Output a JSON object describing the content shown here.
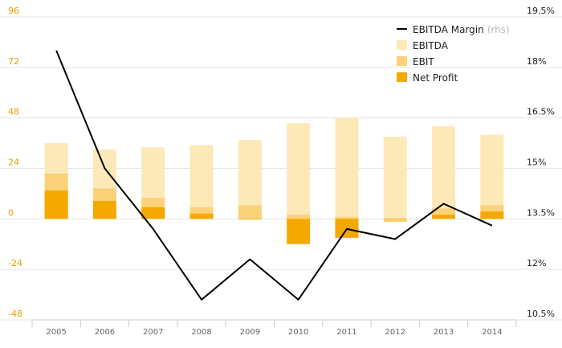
{
  "chart_data": {
    "type": "bar",
    "categories": [
      "2005",
      "2006",
      "2007",
      "2008",
      "2009",
      "2010",
      "2011",
      "2012",
      "2013",
      "2014"
    ],
    "left_axis": {
      "ylim": [
        -48,
        96
      ],
      "ticks": [
        "96",
        "72",
        "48",
        "24",
        "0",
        "-24",
        "-48"
      ],
      "tick_values": [
        96,
        72,
        48,
        24,
        0,
        -24,
        -48
      ]
    },
    "right_axis": {
      "ylim": [
        10.5,
        19.5
      ],
      "ticks": [
        "19.5%",
        "18%",
        "16.5%",
        "15%",
        "13.5%",
        "12%",
        "10.5%"
      ],
      "tick_values": [
        19.5,
        18,
        16.5,
        15,
        13.5,
        12,
        10.5
      ]
    },
    "series": [
      {
        "name": "EBITDA",
        "kind": "bar",
        "color": "#fde8b8",
        "values": [
          36,
          33,
          34,
          35,
          37.5,
          45.5,
          48,
          39,
          44,
          40
        ]
      },
      {
        "name": "EBIT",
        "kind": "bar",
        "color": "#fbd27a",
        "values": [
          21.5,
          14.5,
          10,
          5.5,
          6.5,
          2,
          1,
          -1.5,
          5,
          6.5
        ]
      },
      {
        "name": "Net Profit",
        "kind": "bar",
        "color": "#f5a800",
        "values": [
          13.5,
          8.5,
          5.5,
          2.5,
          0,
          -12,
          -9,
          0,
          2,
          3.5
        ]
      },
      {
        "name": "EBITDA Margin",
        "name_suffix": "(rhs)",
        "kind": "line",
        "axis": "right",
        "color": "#000000",
        "values": [
          18.5,
          15,
          13.2,
          11.1,
          12.3,
          11.1,
          13.2,
          12.9,
          13.95,
          13.3
        ]
      }
    ],
    "legend": {
      "position": "top-right",
      "items": [
        {
          "label": "EBITDA Margin",
          "suffix": "(rhs)",
          "marker": "line",
          "color": "#000000"
        },
        {
          "label": "EBITDA",
          "marker": "box",
          "color": "#fde8b8"
        },
        {
          "label": "EBIT",
          "marker": "box",
          "color": "#fbd27a"
        },
        {
          "label": "Net Profit",
          "marker": "box",
          "color": "#f5a800"
        }
      ]
    },
    "grid": true
  }
}
